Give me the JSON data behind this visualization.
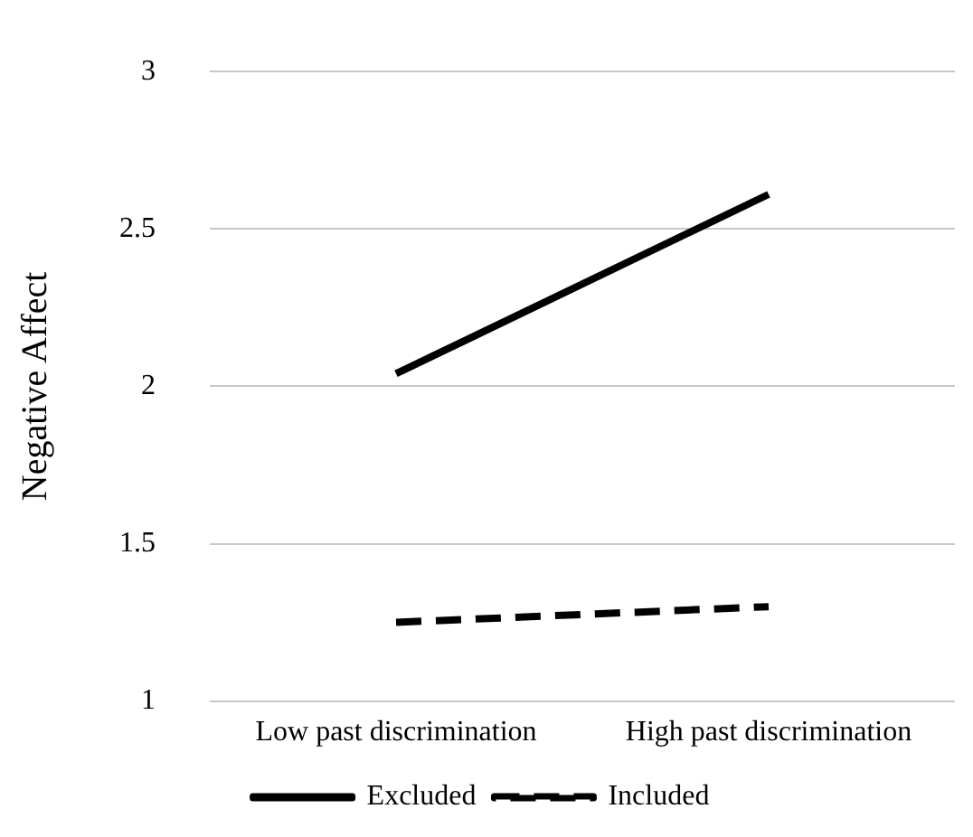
{
  "chart_data": {
    "type": "line",
    "ylabel": "Negative Affect",
    "categories": [
      "Low past discrimination",
      "High past discrimination"
    ],
    "series": [
      {
        "name": "Excluded",
        "color": "#000000",
        "values": [
          2.04,
          2.61
        ],
        "line_style": "solid"
      },
      {
        "name": "Included",
        "color": "#000000",
        "values": [
          1.25,
          1.3
        ],
        "line_style": "dashed"
      }
    ],
    "ylim": [
      1,
      3
    ],
    "yticks": [
      1,
      1.5,
      2,
      2.5,
      3
    ],
    "grid": "y",
    "legend": "bottom",
    "marker": "none"
  }
}
